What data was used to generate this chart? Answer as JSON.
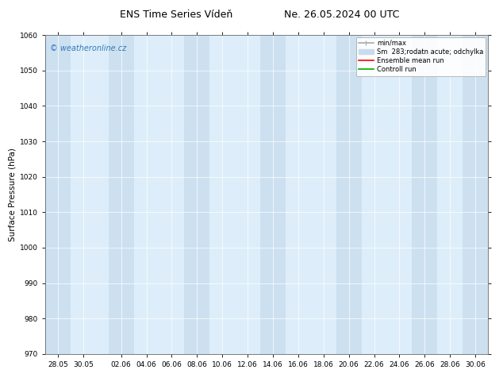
{
  "title": "ENS Time Series Vídeň",
  "title2": "Ne. 26.05.2024 00 UTC",
  "ylabel": "Surface Pressure (hPa)",
  "ylim": [
    970,
    1060
  ],
  "yticks": [
    970,
    980,
    990,
    1000,
    1010,
    1020,
    1030,
    1040,
    1050,
    1060
  ],
  "xlabel_ticks": [
    "28.05",
    "30.05",
    "02.06",
    "04.06",
    "06.06",
    "08.06",
    "10.06",
    "12.06",
    "14.06",
    "16.06",
    "18.06",
    "20.06",
    "22.06",
    "24.06",
    "26.06",
    "28.06",
    "30.06"
  ],
  "x_values": [
    0,
    2,
    5,
    7,
    9,
    11,
    13,
    15,
    17,
    19,
    21,
    23,
    25,
    27,
    29,
    31,
    33
  ],
  "shaded_centers": [
    0,
    5,
    11,
    17,
    23,
    29,
    33
  ],
  "shaded_color": "#cce0f0",
  "bg_color": "#ffffff",
  "plot_bg_color": "#ddeefa",
  "watermark_text": "© weatheronline.cz",
  "watermark_color": "#3377bb",
  "legend_items": [
    {
      "label": "min/max",
      "color": "#aaaaaa",
      "lw": 1.2
    },
    {
      "label": "Sm  283;rodatn acute; odchylka",
      "color": "#c8dced",
      "lw": 5
    },
    {
      "label": "Ensemble mean run",
      "color": "#ff0000",
      "lw": 1.2
    },
    {
      "label": "Controll run",
      "color": "#00aa00",
      "lw": 1.2
    }
  ],
  "title_fontsize": 9,
  "tick_fontsize": 6.5,
  "ylabel_fontsize": 7.5,
  "watermark_fontsize": 7,
  "legend_fontsize": 6
}
